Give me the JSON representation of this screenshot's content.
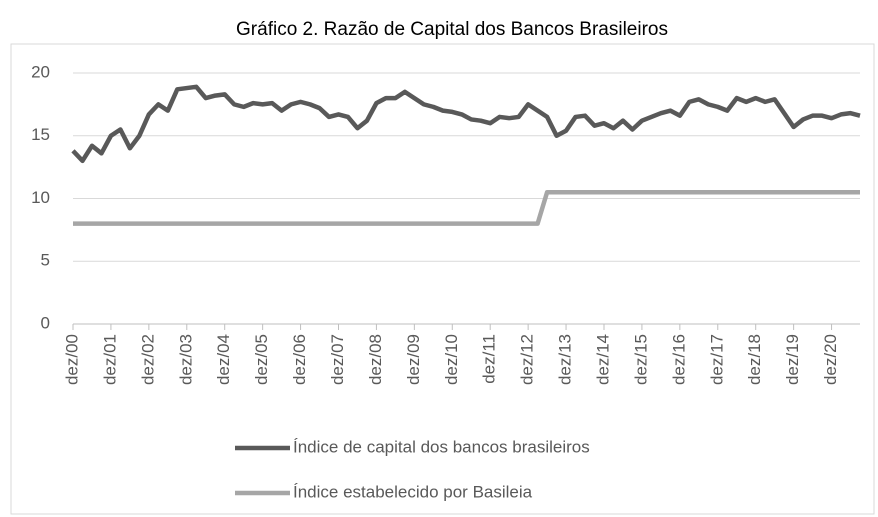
{
  "chart_data": {
    "type": "line",
    "title": "Gráfico 2. Razão de Capital dos Bancos Brasileiros",
    "categories": [
      "dez/00",
      null,
      null,
      null,
      "dez/01",
      null,
      null,
      null,
      "dez/02",
      null,
      null,
      null,
      "dez/03",
      null,
      null,
      null,
      "dez/04",
      null,
      null,
      null,
      "dez/05",
      null,
      null,
      null,
      "dez/06",
      null,
      null,
      null,
      "dez/07",
      null,
      null,
      null,
      "dez/08",
      null,
      null,
      null,
      "dez/09",
      null,
      null,
      null,
      "dez/10",
      null,
      null,
      null,
      "dez/11",
      null,
      null,
      null,
      "dez/12",
      null,
      null,
      null,
      "dez/13",
      null,
      null,
      null,
      "dez/14",
      null,
      null,
      null,
      "dez/15",
      null,
      null,
      null,
      "dez/16",
      null,
      null,
      null,
      "dez/17",
      null,
      null,
      null,
      "dez/18",
      null,
      null,
      null,
      "dez/19",
      null,
      null,
      null,
      "dez/20",
      null,
      null,
      null
    ],
    "series": [
      {
        "name": "Índice de capital dos bancos brasileiros",
        "color": "#595959",
        "values": [
          13.8,
          13.0,
          14.2,
          13.6,
          15.0,
          15.5,
          14.0,
          15.0,
          16.7,
          17.5,
          17.0,
          18.7,
          18.8,
          18.9,
          18.0,
          18.2,
          18.3,
          17.5,
          17.3,
          17.6,
          17.5,
          17.6,
          17.0,
          17.5,
          17.7,
          17.5,
          17.2,
          16.5,
          16.7,
          16.5,
          15.6,
          16.2,
          17.6,
          18.0,
          18.0,
          18.5,
          18.0,
          17.5,
          17.3,
          17.0,
          16.9,
          16.7,
          16.3,
          16.2,
          16.0,
          16.5,
          16.4,
          16.5,
          17.5,
          17.0,
          16.5,
          15.0,
          15.4,
          16.5,
          16.6,
          15.8,
          16.0,
          15.6,
          16.2,
          15.5,
          16.2,
          16.5,
          16.8,
          17.0,
          16.6,
          17.7,
          17.9,
          17.5,
          17.3,
          17.0,
          18.0,
          17.7,
          18.0,
          17.7,
          17.9,
          16.8,
          15.7,
          16.3,
          16.6,
          16.6,
          16.4,
          16.7,
          16.8,
          16.6
        ]
      },
      {
        "name": "Índice estabelecido por Basileia",
        "color": "#a6a6a6",
        "values": [
          8,
          8,
          8,
          8,
          8,
          8,
          8,
          8,
          8,
          8,
          8,
          8,
          8,
          8,
          8,
          8,
          8,
          8,
          8,
          8,
          8,
          8,
          8,
          8,
          8,
          8,
          8,
          8,
          8,
          8,
          8,
          8,
          8,
          8,
          8,
          8,
          8,
          8,
          8,
          8,
          8,
          8,
          8,
          8,
          8,
          8,
          8,
          8,
          8,
          8,
          10.5,
          10.5,
          10.5,
          10.5,
          10.5,
          10.5,
          10.5,
          10.5,
          10.5,
          10.5,
          10.5,
          10.5,
          10.5,
          10.5,
          10.5,
          10.5,
          10.5,
          10.5,
          10.5,
          10.5,
          10.5,
          10.5,
          10.5,
          10.5,
          10.5,
          10.5,
          10.5,
          10.5,
          10.5,
          10.5,
          10.5,
          10.5,
          10.5,
          10.5
        ]
      }
    ],
    "ylim": [
      0,
      20
    ],
    "yticks": [
      0,
      5,
      10,
      15,
      20
    ],
    "grid": true,
    "legend": "bottom"
  }
}
